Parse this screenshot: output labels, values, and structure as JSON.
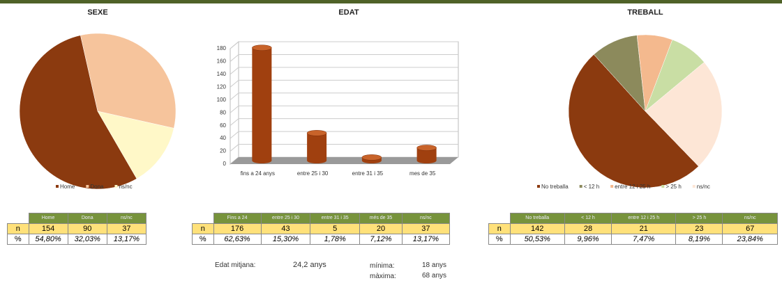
{
  "chart_data": [
    {
      "type": "pie",
      "title": "SEXE",
      "categories": [
        "Home",
        "Dona",
        "ns/nc"
      ],
      "values": [
        154,
        90,
        37
      ],
      "colors": [
        "#8b3a0f",
        "#f6c49c",
        "#fff8c8"
      ],
      "legend": "bottom"
    },
    {
      "type": "bar",
      "title": "EDAT",
      "categories": [
        "fins a 24 anys",
        "entre 25 i 30",
        "entre 31 i 35",
        "mes de 35"
      ],
      "values": [
        176,
        43,
        5,
        20
      ],
      "color": "#a0400f",
      "ylim": [
        0,
        180
      ],
      "yticks": [
        0,
        20,
        40,
        60,
        80,
        100,
        120,
        140,
        160,
        180
      ],
      "grid": true
    },
    {
      "type": "pie",
      "title": "TREBALL",
      "categories": [
        "No treballa",
        "< 12 h",
        "entre 12 i 25 h",
        "> 25 h",
        "ns/nc"
      ],
      "values": [
        142,
        28,
        21,
        23,
        67
      ],
      "colors": [
        "#8b3a0f",
        "#8c8a5c",
        "#f4b98e",
        "#c9dea4",
        "#fde6d6"
      ],
      "legend": "bottom"
    }
  ],
  "tables": [
    {
      "headers": [
        "Home",
        "Dona",
        "ns/nc"
      ],
      "rows": [
        [
          "n",
          154,
          90,
          37
        ],
        [
          "%",
          "54,80%",
          "32,03%",
          "13,17%"
        ]
      ]
    },
    {
      "headers": [
        "Fins a 24",
        "entre 25 i 30",
        "entre 31 i 35",
        "més de 35",
        "ns/nc"
      ],
      "rows": [
        [
          "n",
          176,
          43,
          5,
          20,
          37
        ],
        [
          "%",
          "62,63%",
          "15,30%",
          "1,78%",
          "7,12%",
          "13,17%"
        ]
      ]
    },
    {
      "headers": [
        "No treballa",
        "< 12 h",
        "entre 12 i 25 h",
        "> 25 h",
        "ns/nc"
      ],
      "rows": [
        [
          "n",
          142,
          28,
          21,
          23,
          67
        ],
        [
          "%",
          "50,53%",
          "9,96%",
          "7,47%",
          "8,19%",
          "23,84%"
        ]
      ]
    }
  ],
  "stats": {
    "mean_label": "Edat mitjana:",
    "mean": "24,2 anys",
    "min_label": "mínima:",
    "min": "18 anys",
    "max_label": "màxima:",
    "max": "68 anys"
  }
}
